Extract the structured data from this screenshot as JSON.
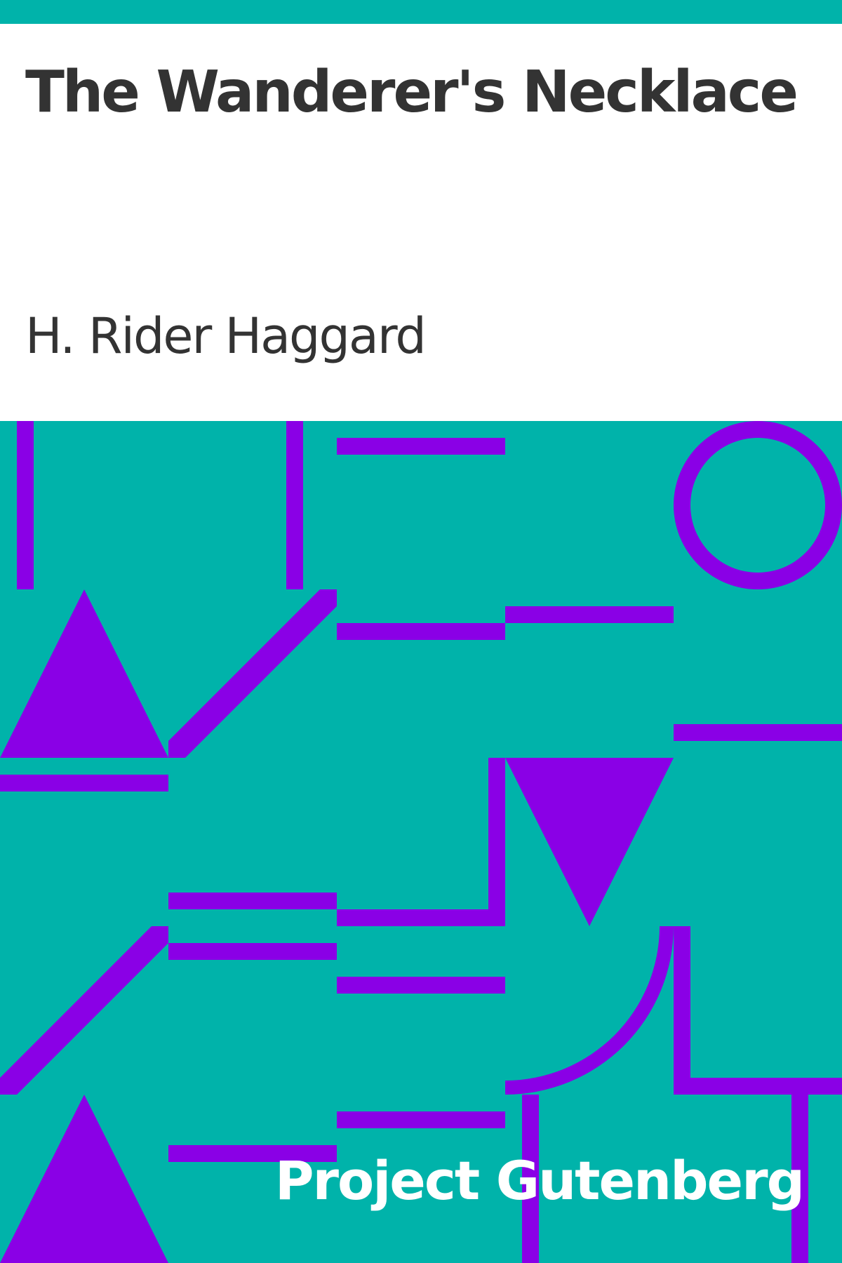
{
  "book": {
    "title": "The Wanderer's Necklace",
    "author": "H. Rider Haggard",
    "publisher": "Project Gutenberg"
  },
  "colors": {
    "background": "#ffffff",
    "teal": "#00b3aa",
    "purple": "#8a00e6",
    "text_dark": "#333333",
    "text_light": "#ffffff"
  }
}
